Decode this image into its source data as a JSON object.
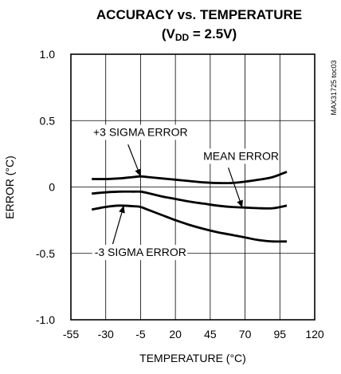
{
  "chart_data": {
    "type": "line",
    "title_line1": "ACCURACY vs. TEMPERATURE",
    "title_line2_prefix": "(V",
    "title_line2_sub": "DD",
    "title_line2_suffix": " = 2.5V)",
    "xlabel": "TEMPERATURE (°C)",
    "ylabel": "ERROR (°C)",
    "xlim": [
      -55,
      120
    ],
    "ylim": [
      -1.0,
      1.0
    ],
    "x_ticks": [
      -55,
      -30,
      -5,
      20,
      45,
      70,
      95,
      120
    ],
    "x_tick_labels": [
      "-55",
      "-30",
      "-5",
      "20",
      "45",
      "70",
      "95",
      "120"
    ],
    "y_ticks": [
      1.0,
      0.5,
      0,
      -0.5,
      -1.0
    ],
    "y_tick_labels": [
      "1.0",
      "0.5",
      "0",
      "-0.5",
      "-1.0"
    ],
    "grid": true,
    "series": [
      {
        "name": "+3 SIGMA ERROR",
        "x": [
          -40,
          -30,
          -20,
          -10,
          -5,
          0,
          10,
          20,
          30,
          40,
          50,
          60,
          70,
          80,
          90,
          100
        ],
        "y": [
          0.06,
          0.06,
          0.065,
          0.075,
          0.08,
          0.075,
          0.065,
          0.055,
          0.045,
          0.035,
          0.03,
          0.03,
          0.04,
          0.055,
          0.075,
          0.115
        ]
      },
      {
        "name": "MEAN ERROR",
        "x": [
          -40,
          -30,
          -20,
          -10,
          -5,
          0,
          10,
          20,
          30,
          40,
          50,
          60,
          70,
          80,
          90,
          100
        ],
        "y": [
          -0.05,
          -0.04,
          -0.035,
          -0.035,
          -0.035,
          -0.045,
          -0.07,
          -0.09,
          -0.11,
          -0.125,
          -0.14,
          -0.15,
          -0.155,
          -0.16,
          -0.16,
          -0.14
        ]
      },
      {
        "name": "-3 SIGMA ERROR",
        "x": [
          -40,
          -30,
          -20,
          -10,
          -5,
          0,
          10,
          20,
          30,
          40,
          50,
          60,
          70,
          80,
          90,
          100
        ],
        "y": [
          -0.17,
          -0.15,
          -0.14,
          -0.145,
          -0.15,
          -0.17,
          -0.21,
          -0.25,
          -0.285,
          -0.315,
          -0.34,
          -0.36,
          -0.38,
          -0.4,
          -0.41,
          -0.41
        ]
      }
    ],
    "annotations": [
      {
        "text": "+3 SIGMA ERROR",
        "target_x": -5,
        "target_y": 0.08
      },
      {
        "text": "MEAN ERROR",
        "target_x": 68,
        "target_y": -0.155
      },
      {
        "text": "-3 SIGMA ERROR",
        "target_x": -17,
        "target_y": -0.14
      }
    ],
    "side_label": "MAX31725 toc03",
    "line_color": "#000000",
    "grid_color": "#000000"
  }
}
